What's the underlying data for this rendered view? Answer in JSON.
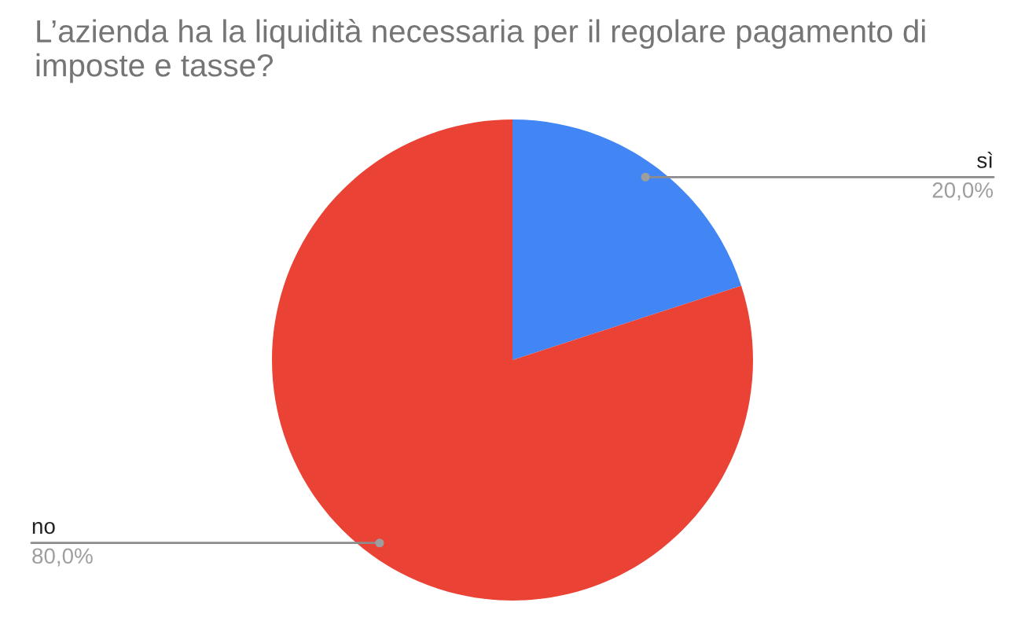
{
  "chart_data": {
    "type": "pie",
    "title": "L’azienda ha la liquidità necessaria per il regolare pagamento di imposte e tasse?",
    "categories": [
      "sì",
      "no"
    ],
    "values": [
      20,
      80
    ],
    "colors": [
      "#4285f4",
      "#ea4335"
    ],
    "value_labels": [
      "20,0%",
      "80,0%"
    ]
  }
}
